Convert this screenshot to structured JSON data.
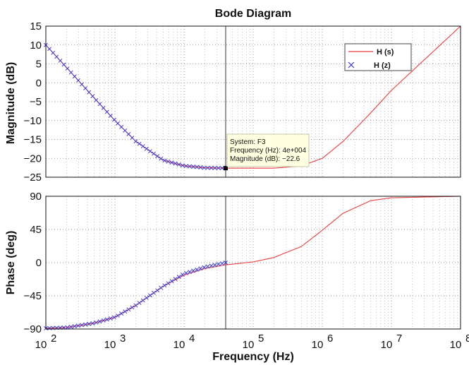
{
  "chart_data": {
    "type": "line",
    "title": "Bode Diagram",
    "xlabel": "Frequency (Hz)",
    "x_scale": "log",
    "xlim": [
      100,
      100000000
    ],
    "x_ticks": [
      {
        "value": 100,
        "base": "10",
        "exp": "2"
      },
      {
        "value": 1000,
        "base": "10",
        "exp": "3"
      },
      {
        "value": 10000,
        "base": "10",
        "exp": "4"
      },
      {
        "value": 100000,
        "base": "10",
        "exp": "5"
      },
      {
        "value": 1000000,
        "base": "10",
        "exp": "6"
      },
      {
        "value": 10000000,
        "base": "10",
        "exp": "7"
      },
      {
        "value": 100000000,
        "base": "10",
        "exp": "8"
      }
    ],
    "grid": true,
    "legend": {
      "placement": "top-right",
      "entries": [
        "H (s)",
        "H (z)"
      ]
    },
    "colors": {
      "H_s": "#e8403f",
      "H_z": "#3b3bd6",
      "cursor": "#333333",
      "datatip_bg": "#ffffe1"
    },
    "panels": [
      {
        "ylabel": "Magnitude (dB)",
        "ylim": [
          -25,
          15
        ],
        "y_ticks": [
          "15",
          "10",
          "5",
          "0",
          "−5",
          "−10",
          "−15",
          "−20",
          "−25"
        ],
        "series": [
          {
            "name": "H (s)",
            "style": "line",
            "x": [
              100,
              200,
              500,
              1000,
              2000,
              5000,
              10000,
              20000,
              40000,
              100000,
              200000,
              500000,
              1000000,
              2000000,
              5000000,
              10000000,
              100000000
            ],
            "y": [
              10,
              4,
              -4,
              -10,
              -15.5,
              -20.5,
              -22,
              -22.5,
              -22.6,
              -22.6,
              -22.6,
              -22,
              -20,
              -15.5,
              -8,
              -2,
              15
            ]
          },
          {
            "name": "H (z)",
            "style": "markers",
            "x": [
              100,
              200,
              500,
              1000,
              2000,
              5000,
              10000,
              20000,
              40000
            ],
            "y": [
              10,
              4,
              -4,
              -10,
              -15.5,
              -20.5,
              -22,
              -22.5,
              -22.6
            ]
          }
        ],
        "datatip": {
          "x": 40000,
          "y": -22.6,
          "lines": [
            "System: F3",
            "Frequency (Hz): 4e+004",
            "Magnitude (dB): −22.6"
          ]
        }
      },
      {
        "ylabel": "Phase (deg)",
        "ylim": [
          -90,
          90
        ],
        "y_ticks": [
          "90",
          "45",
          "0",
          "−45",
          "−90"
        ],
        "series": [
          {
            "name": "H (s)",
            "style": "line",
            "x": [
              100,
              200,
              500,
              1000,
              2000,
              5000,
              10000,
              20000,
              40000,
              100000,
              200000,
              500000,
              1000000,
              2000000,
              5000000,
              10000000,
              100000000
            ],
            "y": [
              -89,
              -88,
              -82,
              -74,
              -58,
              -32,
              -17,
              -8,
              -3,
              1,
              7,
              22,
              44,
              67,
              84,
              88,
              90
            ]
          },
          {
            "name": "H (z)",
            "style": "markers",
            "x": [
              100,
              200,
              500,
              1000,
              2000,
              5000,
              10000,
              20000,
              40000
            ],
            "y": [
              -89,
              -88,
              -82,
              -74,
              -58,
              -32,
              -15,
              -6,
              0
            ]
          }
        ]
      }
    ],
    "cursor_x": 40000
  }
}
